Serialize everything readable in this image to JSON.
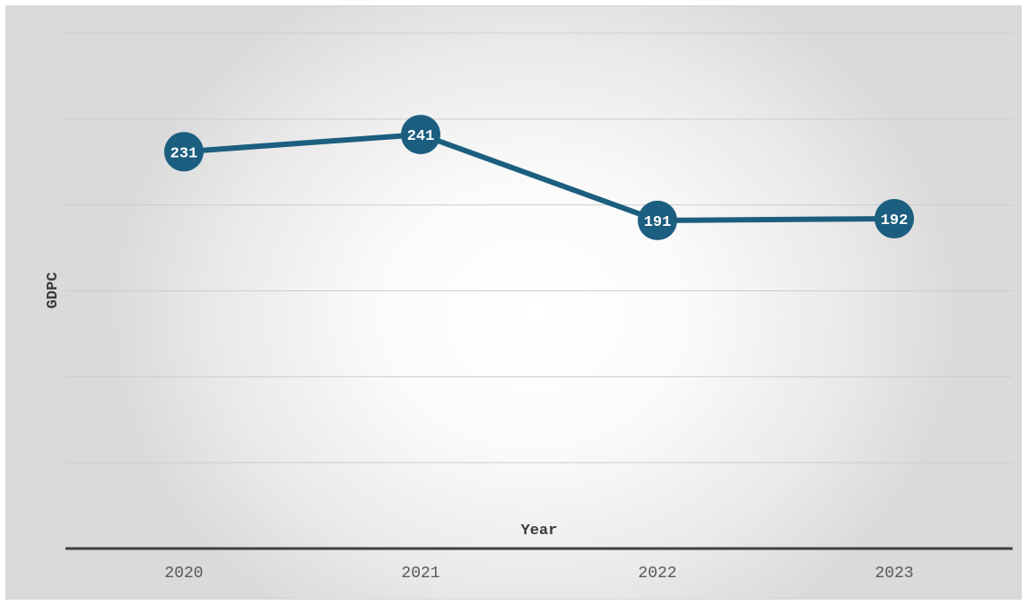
{
  "chart_data": {
    "type": "line",
    "categories": [
      "2020",
      "2021",
      "2022",
      "2023"
    ],
    "series": [
      {
        "values": [
          231,
          241,
          191,
          192
        ]
      }
    ],
    "data_labels": [
      "231",
      "241",
      "191",
      "192"
    ],
    "title": "",
    "xlabel": "Year",
    "ylabel": "GDPC",
    "ylim": [
      0,
      300
    ],
    "y_tick_step": 50,
    "grid": true,
    "legend": "none",
    "colors": {
      "line": "#1b5e80",
      "marker": "#1b5e80",
      "gridline": "#cccccc",
      "axis": "#404040"
    }
  }
}
